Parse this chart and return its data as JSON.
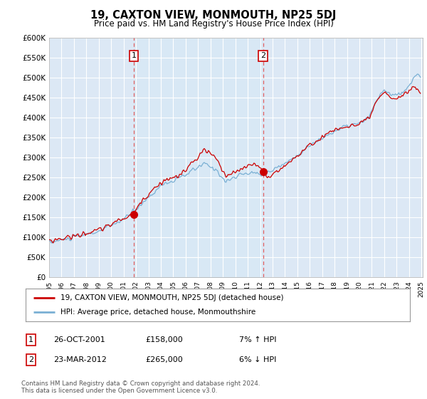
{
  "title": "19, CAXTON VIEW, MONMOUTH, NP25 5DJ",
  "subtitle": "Price paid vs. HM Land Registry's House Price Index (HPI)",
  "sale1_year": 2001.82,
  "sale1_price": 158000,
  "sale2_year": 2012.23,
  "sale2_price": 265000,
  "sale_color": "#cc0000",
  "hpi_color": "#7ab0d4",
  "vline_color": "#e06060",
  "shade_color": "#d8e8f5",
  "plot_bg": "#dce8f5",
  "grid_color": "#ffffff",
  "legend_sale_label": "19, CAXTON VIEW, MONMOUTH, NP25 5DJ (detached house)",
  "legend_hpi_label": "HPI: Average price, detached house, Monmouthshire",
  "footer": "Contains HM Land Registry data © Crown copyright and database right 2024.\nThis data is licensed under the Open Government Licence v3.0.",
  "ann1_date": "26-OCT-2001",
  "ann1_price": "£158,000",
  "ann1_hpi": "7% ↑ HPI",
  "ann2_date": "23-MAR-2012",
  "ann2_price": "£265,000",
  "ann2_hpi": "6% ↓ HPI",
  "ylim": [
    0,
    600000
  ],
  "yticks": [
    0,
    50000,
    100000,
    150000,
    200000,
    250000,
    300000,
    350000,
    400000,
    450000,
    500000,
    550000,
    600000
  ],
  "ytick_labels": [
    "£0",
    "£50K",
    "£100K",
    "£150K",
    "£200K",
    "£250K",
    "£300K",
    "£350K",
    "£400K",
    "£450K",
    "£500K",
    "£550K",
    "£600K"
  ]
}
